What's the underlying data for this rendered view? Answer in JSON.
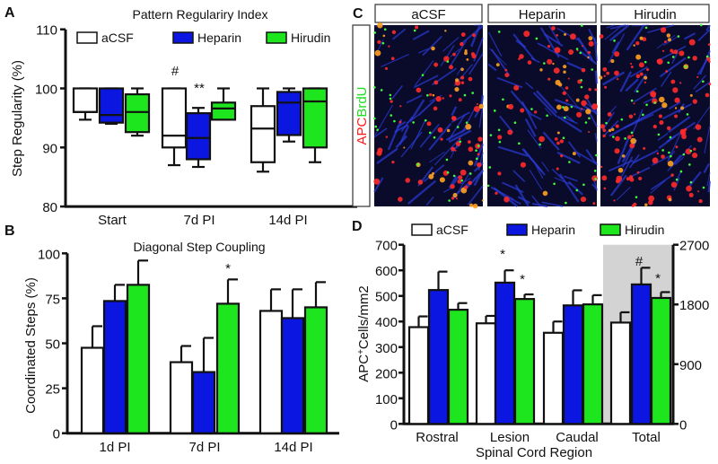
{
  "panel_labels": {
    "a": "A",
    "b": "B",
    "c": "C",
    "d": "D"
  },
  "colors": {
    "aCSF": "#ffffff",
    "Heparin": "#0b16e0",
    "Hirudin": "#1ee61e",
    "total_bg": "#d3d3d3"
  },
  "legend": [
    "aCSF",
    "Heparin",
    "Hirudin"
  ],
  "panel_c": {
    "columns": [
      "aCSF",
      "Heparin",
      "Hirudin"
    ],
    "stain_red": "APC",
    "stain_green": "BrdU"
  },
  "chart_data": [
    {
      "type": "box",
      "title": "Pattern Regulariry Index",
      "ylabel": "Step Regularity (%)",
      "xlabel": "",
      "ylim": [
        80,
        110
      ],
      "yticks": [
        "80",
        "90",
        "100",
        "110"
      ],
      "categories": [
        "Start",
        "7d PI",
        "14d PI"
      ],
      "series": [
        {
          "name": "aCSF",
          "boxes": [
            {
              "min": 94.7,
              "q1": 96,
              "median": 96,
              "q3": 100,
              "max": 100
            },
            {
              "min": 87,
              "q1": 90,
              "median": 92,
              "q3": 100,
              "max": 100
            },
            {
              "min": 85.9,
              "q1": 87.5,
              "median": 93.2,
              "q3": 97,
              "max": 100
            }
          ]
        },
        {
          "name": "Heparin",
          "boxes": [
            {
              "min": 94,
              "q1": 94.2,
              "median": 95.5,
              "q3": 100,
              "max": 100
            },
            {
              "min": 86.7,
              "q1": 88,
              "median": 91.6,
              "q3": 95.8,
              "max": 96.7
            },
            {
              "min": 91,
              "q1": 92.1,
              "median": 97.6,
              "q3": 99.4,
              "max": 100
            }
          ]
        },
        {
          "name": "Hirudin",
          "boxes": [
            {
              "min": 92,
              "q1": 92.6,
              "median": 96,
              "q3": 99,
              "max": 100
            },
            {
              "min": 94.7,
              "q1": 94.7,
              "median": 96.6,
              "q3": 97.6,
              "max": 100
            },
            {
              "min": 87.5,
              "q1": 90,
              "median": 97.8,
              "q3": 100,
              "max": 100
            }
          ]
        }
      ],
      "annotations": [
        {
          "text": "#",
          "category": "7d PI",
          "series": "aCSF"
        },
        {
          "text": "**",
          "category": "7d PI",
          "series": "Heparin"
        }
      ],
      "legend": "top"
    },
    {
      "type": "bar",
      "title": "Diagonal Step Coupling",
      "ylabel": "Coordinated Steps (%)",
      "xlabel": "",
      "ylim": [
        0,
        100
      ],
      "yticks": [
        "0",
        "25",
        "50",
        "75",
        "100"
      ],
      "categories": [
        "1d PI",
        "7d PI",
        "14d PI"
      ],
      "series": [
        {
          "name": "aCSF",
          "values": [
            47.5,
            39.5,
            68
          ],
          "error_upper": [
            59.5,
            48.5,
            80
          ]
        },
        {
          "name": "Heparin",
          "values": [
            73.5,
            34,
            64
          ],
          "error_upper": [
            82.5,
            53,
            80
          ]
        },
        {
          "name": "Hirudin",
          "values": [
            82.5,
            72,
            70
          ],
          "error_upper": [
            96,
            85.5,
            84
          ]
        }
      ],
      "annotations": [
        {
          "text": "*",
          "category": "7d PI",
          "series": "Hirudin"
        }
      ]
    },
    {
      "type": "bar",
      "title": "",
      "ylabel": "APC+Cells/mm2",
      "ylabel_parts": [
        "APC",
        "+",
        "Cells/mm2"
      ],
      "xlabel": "Spinal Cord Region",
      "ylim": [
        0,
        700
      ],
      "yticks": [
        "0",
        "100",
        "200",
        "300",
        "400",
        "500",
        "600",
        "700"
      ],
      "y2lim": [
        0,
        2700
      ],
      "y2ticks": [
        "0",
        "900",
        "1800",
        "2700"
      ],
      "categories": [
        "Rostral",
        "Lesion",
        "Caudal",
        "Total"
      ],
      "note": "Total plotted on right axis (shaded)",
      "series": [
        {
          "name": "aCSF",
          "values": [
            378,
            393,
            356,
            1527
          ],
          "error_upper": [
            420,
            422,
            400,
            1682
          ]
        },
        {
          "name": "Heparin",
          "values": [
            523,
            552,
            463,
            2102
          ],
          "error_upper": [
            595,
            600,
            522,
            2353
          ]
        },
        {
          "name": "Hirudin",
          "values": [
            446,
            488,
            467,
            1898
          ],
          "error_upper": [
            472,
            506,
            503,
            1986
          ]
        }
      ],
      "annotations": [
        {
          "text": "*",
          "category": "Lesion",
          "series": "Heparin"
        },
        {
          "text": "*",
          "category": "Lesion",
          "series": "Hirudin"
        },
        {
          "text": "#",
          "category": "Total",
          "series": "Heparin"
        },
        {
          "text": "*",
          "category": "Total",
          "series": "Hirudin"
        }
      ],
      "legend": "top"
    }
  ]
}
